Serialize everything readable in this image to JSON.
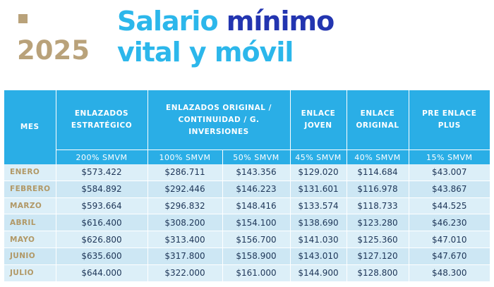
{
  "header": {
    "year": "2025",
    "title_part1": "Salario ",
    "title_part2": "mínimo",
    "title_line2": "vital y móvil",
    "colors": {
      "gold": "#b9a27a",
      "light_blue": "#2cb7eb",
      "dark_blue": "#2335b0"
    }
  },
  "table": {
    "headers": [
      {
        "label": "MES",
        "sub": ""
      },
      {
        "label": "ENLAZADOS ESTRATÉGICO",
        "sub": "200% SMVM"
      },
      {
        "label": "ENLAZADOS ORIGINAL / CONTINUIDAD / G. INVERSIONES",
        "sub": "100% SMVM",
        "sub2": "50% SMVM"
      },
      {
        "label": "ENLACE JOVEN",
        "sub": "45% SMVM"
      },
      {
        "label": "ENLACE ORIGINAL",
        "sub": "40% SMVM"
      },
      {
        "label": "PRE ENLACE PLUS",
        "sub": "15% SMVM"
      }
    ],
    "rows": [
      [
        "ENERO",
        "$573.422",
        "$286.711",
        "$143.356",
        "$129.020",
        "$114.684",
        "$43.007"
      ],
      [
        "FEBRERO",
        "$584.892",
        "$292.446",
        "$146.223",
        "$131.601",
        "$116.978",
        "$43.867"
      ],
      [
        "MARZO",
        "$593.664",
        "$296.832",
        "$148.416",
        "$133.574",
        "$118.733",
        "$44.525"
      ],
      [
        "ABRIL",
        "$616.400",
        "$308.200",
        "$154.100",
        "$138.690",
        "$123.280",
        "$46.230"
      ],
      [
        "MAYO",
        "$626.800",
        "$313.400",
        "$156.700",
        "$141.030",
        "$125.360",
        "$47.010"
      ],
      [
        "JUNIO",
        "$635.600",
        "$317.800",
        "$158.900",
        "$143.010",
        "$127.120",
        "$47.670"
      ],
      [
        "JULIO",
        "$644.000",
        "$322.000",
        "$161.000",
        "$144.900",
        "$128.800",
        "$48.300"
      ]
    ]
  }
}
